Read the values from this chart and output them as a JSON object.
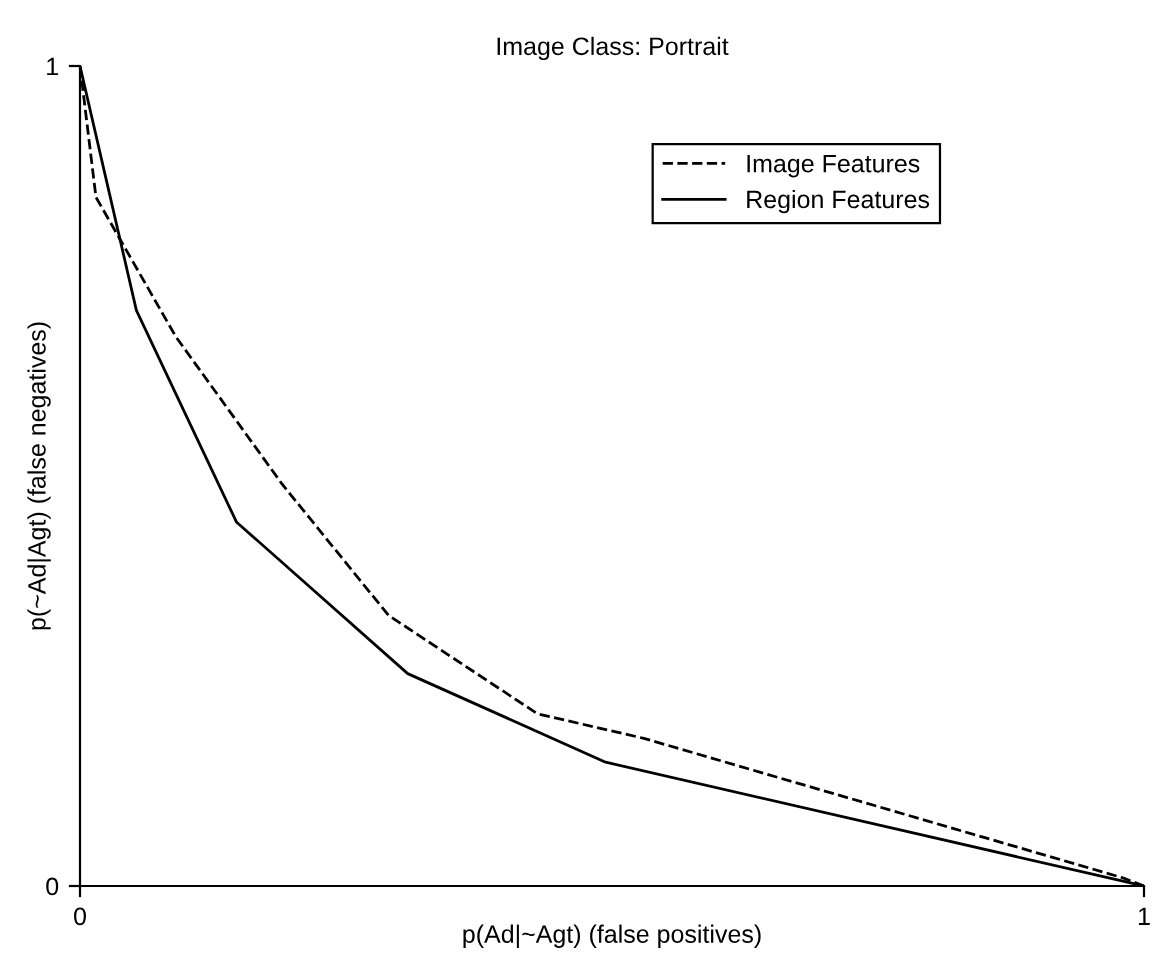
{
  "chart_data": {
    "type": "line",
    "title": "Image Class: Portrait",
    "xlabel": "p(Ad|~Agt) (false positives)",
    "ylabel": "p(~Ad|Agt) (false negatives)",
    "xlim": [
      0,
      1
    ],
    "ylim": [
      0,
      1
    ],
    "xticks": [
      0,
      1
    ],
    "yticks": [
      0,
      1
    ],
    "grid": false,
    "legend": "top right",
    "marker": "none",
    "series": [
      {
        "name": "Image Features",
        "color": "#000000",
        "line_style": "dashed",
        "x": [
          0,
          0.015,
          0.09,
          0.19,
          0.29,
          0.43,
          0.53,
          0.98,
          1
        ],
        "values": [
          1,
          0.84,
          0.67,
          0.49,
          0.33,
          0.21,
          0.18,
          0.01,
          0
        ]
      },
      {
        "name": "Region Features",
        "color": "#000000",
        "line_style": "solid",
        "x": [
          0,
          0.053,
          0.147,
          0.308,
          0.494,
          1
        ],
        "values": [
          1,
          0.702,
          0.444,
          0.259,
          0.151,
          0
        ]
      }
    ]
  }
}
